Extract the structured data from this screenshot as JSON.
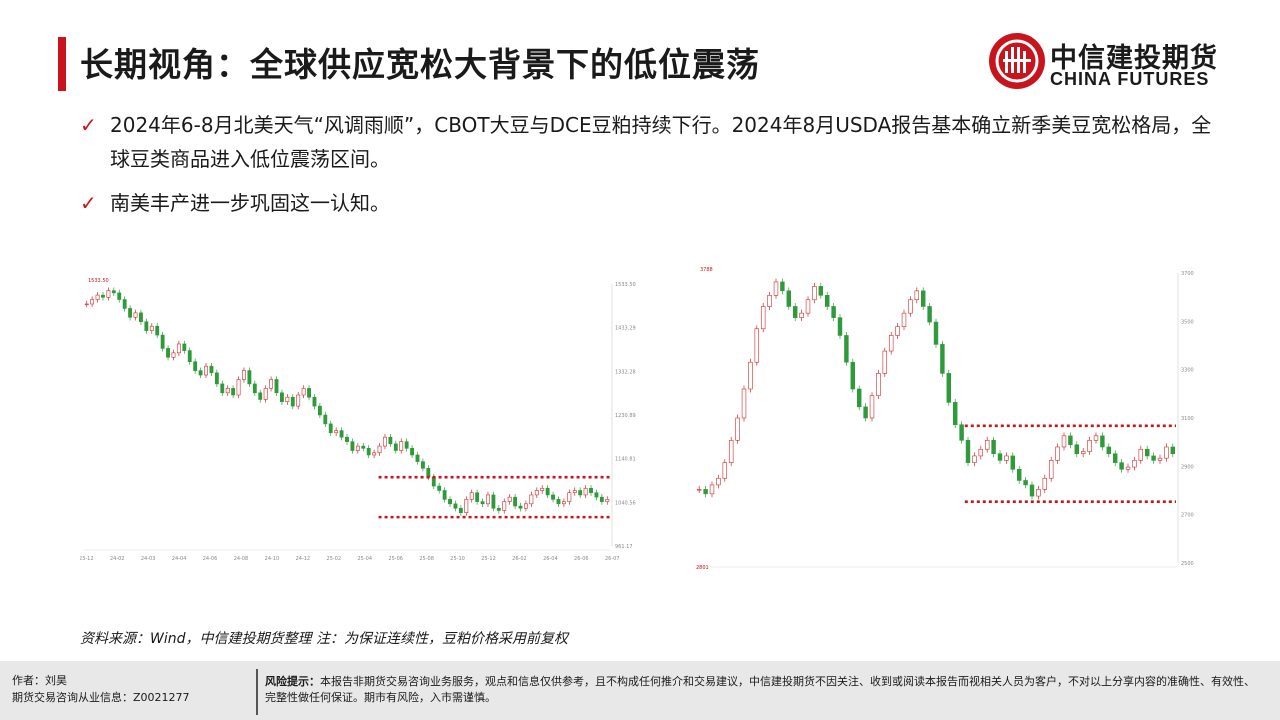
{
  "title": "长期视角：全球供应宽松大背景下的低位震荡",
  "logo": {
    "cn": "中信建投期货",
    "en": "CHINA FUTURES"
  },
  "bullets": [
    {
      "text": "2024年6-8月北美天气“风调雨顺”，CBOT大豆与DCE豆粕持续下行。2024年8月USDA报告基本确立新季美豆宽松格局，全球豆类商品进入低位震荡区间。"
    },
    {
      "text": "南美丰产进一步巩固这一认知。"
    }
  ],
  "source": "资料来源：Wind，中信建投期货整理    注：为保证连续性，豆粕价格采用前复权",
  "footer": {
    "author": "作者：刘昊",
    "license": "期货交易咨询从业信息：Z0021277",
    "risk_label": "风险提示：",
    "risk_text": "本报告非期货交易咨询业务服务，观点和信息仅供参考，且不构成任何推介和交易建议，中信建投期货不因关注、收到或阅读本报告而视相关人员为客户，不对以上分享内容的准确性、有效性、完整性做任何保证。期市有风险，入市需谨慎。"
  },
  "colors": {
    "accent": "#c8151d",
    "up": "#d42a2a",
    "down": "#2e9a3a",
    "band": "#c8151d"
  },
  "chart_data": [
    {
      "type": "candlestick",
      "high_label": "1533.50",
      "y_ticks": [
        "1533.50",
        "1433.29",
        "1332.28",
        "1230.89",
        "1140.81",
        "1040.56",
        "961.17"
      ],
      "ylim": [
        955,
        1545
      ],
      "band": [
        1020,
        1110
      ],
      "closes": [
        1500,
        1510,
        1520,
        1515,
        1530,
        1525,
        1510,
        1490,
        1470,
        1480,
        1460,
        1440,
        1450,
        1430,
        1400,
        1380,
        1390,
        1410,
        1395,
        1370,
        1350,
        1340,
        1360,
        1345,
        1320,
        1300,
        1310,
        1295,
        1330,
        1350,
        1320,
        1300,
        1285,
        1310,
        1330,
        1300,
        1280,
        1290,
        1270,
        1295,
        1310,
        1290,
        1270,
        1250,
        1230,
        1210,
        1215,
        1200,
        1190,
        1170,
        1180,
        1175,
        1160,
        1165,
        1180,
        1200,
        1185,
        1170,
        1190,
        1175,
        1160,
        1145,
        1130,
        1110,
        1090,
        1080,
        1060,
        1050,
        1040,
        1030,
        1060,
        1075,
        1055,
        1050,
        1070,
        1040,
        1035,
        1055,
        1065,
        1045,
        1040,
        1050,
        1070,
        1080,
        1085,
        1070,
        1060,
        1050,
        1055,
        1075,
        1080,
        1070,
        1085,
        1075,
        1065,
        1055,
        1060
      ],
      "x_ticks": [
        "23-12",
        "24-02",
        "24-03",
        "24-04",
        "24-06",
        "24-08",
        "24-10",
        "24-12",
        "25-02",
        "25-04",
        "25-06",
        "25-08",
        "25-10",
        "25-12",
        "26-02",
        "26-04",
        "26-06",
        "26-07"
      ]
    },
    {
      "type": "candlestick",
      "high_label": "3788",
      "low_label": "2801",
      "y_ticks": [
        "3700",
        "3500",
        "3300",
        "3100",
        "2900",
        "2700",
        "2500"
      ],
      "ylim": [
        2500,
        3800
      ],
      "band": [
        2775,
        3115
      ],
      "closes": [
        2830,
        2810,
        2850,
        2880,
        2950,
        3050,
        3150,
        3280,
        3400,
        3550,
        3650,
        3700,
        3760,
        3720,
        3650,
        3600,
        3620,
        3680,
        3740,
        3700,
        3650,
        3600,
        3520,
        3400,
        3280,
        3200,
        3150,
        3250,
        3350,
        3450,
        3520,
        3560,
        3620,
        3680,
        3720,
        3650,
        3580,
        3480,
        3350,
        3220,
        3120,
        3050,
        2950,
        2980,
        3010,
        3050,
        2990,
        2960,
        2980,
        2920,
        2870,
        2850,
        2800,
        2830,
        2880,
        2960,
        3020,
        3070,
        3030,
        2990,
        3000,
        3050,
        3070,
        3020,
        2990,
        2950,
        2920,
        2930,
        2960,
        3010,
        2980,
        2960,
        2970,
        3020,
        2990
      ]
    }
  ]
}
